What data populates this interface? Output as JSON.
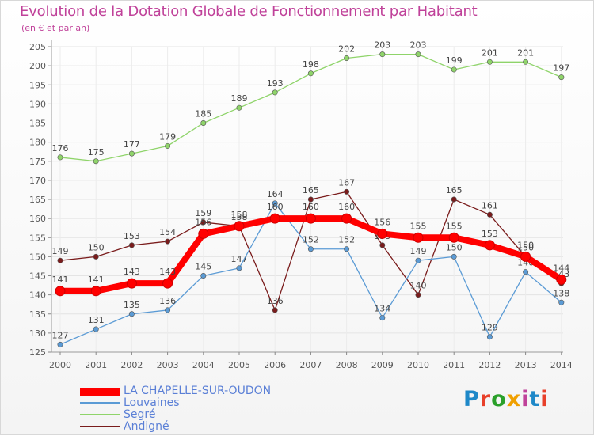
{
  "title": "Evolution de la Dotation Globale de Fonctionnement par Habitant",
  "subtitle": "(en € et par an)",
  "logo": {
    "text": "Proxiti",
    "letter_colors": [
      "#1e88c8",
      "#e8402a",
      "#2aa02a",
      "#f0a000",
      "#c0429a",
      "#1e88c8",
      "#e8402a"
    ]
  },
  "chart_data": {
    "type": "line",
    "x": [
      2000,
      2001,
      2002,
      2003,
      2004,
      2005,
      2006,
      2007,
      2008,
      2009,
      2010,
      2011,
      2012,
      2013,
      2014
    ],
    "ylim": [
      125,
      205
    ],
    "yticks": [
      125,
      130,
      135,
      140,
      145,
      150,
      155,
      160,
      165,
      170,
      175,
      180,
      185,
      190,
      195,
      200,
      205
    ],
    "grid": true,
    "series": [
      {
        "name": "Segré",
        "color": "#8fd46a",
        "values": [
          176,
          175,
          177,
          179,
          185,
          189,
          193,
          198,
          202,
          203,
          203,
          199,
          201,
          201,
          197
        ]
      },
      {
        "name": "Andigné",
        "color": "#7a1c1c",
        "values": [
          149,
          150,
          153,
          154,
          159,
          158,
          136,
          165,
          167,
          153,
          140,
          165,
          161,
          150,
          143
        ]
      },
      {
        "name": "Louvaines",
        "color": "#5b9bd5",
        "values": [
          127,
          131,
          135,
          136,
          145,
          147,
          164,
          152,
          152,
          134,
          149,
          150,
          129,
          146,
          138
        ]
      },
      {
        "name": "LA CHAPELLE-SUR-OUDON",
        "color": "#ff0000",
        "values": [
          141,
          141,
          143,
          143,
          156,
          158,
          160,
          160,
          160,
          156,
          155,
          155,
          153,
          150,
          144
        ]
      }
    ],
    "legend_order": [
      "LA CHAPELLE-SUR-OUDON",
      "Louvaines",
      "Segré",
      "Andigné"
    ],
    "legend_position": "bottom-left"
  }
}
